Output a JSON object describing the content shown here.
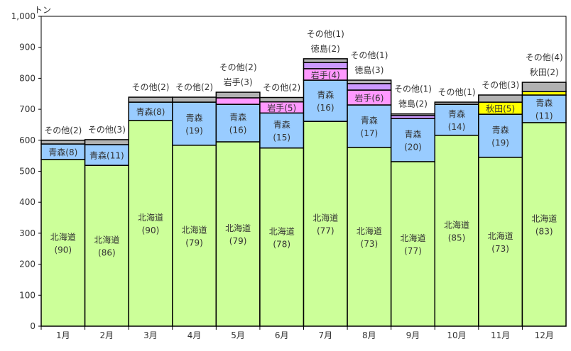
{
  "chart_data": {
    "type": "bar",
    "stacked": true,
    "unit_label": "トン",
    "ylim": [
      0,
      1000
    ],
    "yticks": [
      0,
      100,
      200,
      300,
      400,
      500,
      600,
      700,
      800,
      900,
      1000
    ],
    "ytick_labels": [
      "0",
      "100",
      "200",
      "300",
      "400",
      "500",
      "600",
      "700",
      "800",
      "900",
      "1,000"
    ],
    "grid": false,
    "legend": "none",
    "categories": [
      "1月",
      "2月",
      "3月",
      "4月",
      "5月",
      "6月",
      "7月",
      "8月",
      "9月",
      "10月",
      "11月",
      "12月"
    ],
    "series": [
      {
        "name": "北海道",
        "color": "#ccff99",
        "values": [
          538,
          519,
          664,
          584,
          595,
          575,
          661,
          577,
          531,
          616,
          545,
          657
        ]
      },
      {
        "name": "青森",
        "color": "#99ccff",
        "values": [
          50,
          67,
          59,
          139,
          121,
          113,
          133,
          137,
          139,
          100,
          139,
          89
        ]
      },
      {
        "name": "岩手",
        "color": "#ff99ff",
        "values": [
          0,
          0,
          0,
          0,
          21,
          36,
          37,
          48,
          0,
          0,
          0,
          0
        ]
      },
      {
        "name": "徳島",
        "color": "#cc99ff",
        "values": [
          0,
          0,
          0,
          0,
          0,
          0,
          20,
          21,
          10,
          0,
          0,
          0
        ]
      },
      {
        "name": "秋田",
        "color": "#ffff00",
        "values": [
          0,
          0,
          0,
          0,
          0,
          0,
          0,
          0,
          0,
          0,
          39,
          11
        ]
      },
      {
        "name": "その他",
        "color": "#b2b2b2",
        "values": [
          12,
          16,
          16,
          16,
          18,
          14,
          12,
          11,
          5,
          7,
          23,
          30
        ]
      }
    ],
    "labels": [
      {
        "inside": [
          [
            "北海道",
            "(90)"
          ],
          [
            "青森(8)"
          ]
        ],
        "above": [
          "その他(2)"
        ]
      },
      {
        "inside": [
          [
            "北海道",
            "(86)"
          ],
          [
            "青森(11)"
          ]
        ],
        "above": [
          "その他(3)"
        ]
      },
      {
        "inside": [
          [
            "北海道",
            "(90)"
          ],
          [
            "青森(8)"
          ]
        ],
        "above": [
          "その他(2)"
        ]
      },
      {
        "inside": [
          [
            "北海道",
            "(79)"
          ],
          [
            "青森",
            "(19)"
          ]
        ],
        "above": [
          "その他(2)"
        ]
      },
      {
        "inside": [
          [
            "北海道",
            "(79)"
          ],
          [
            "青森",
            "(16)"
          ]
        ],
        "above": [
          "岩手(3)",
          "その他(2)"
        ]
      },
      {
        "inside": [
          [
            "北海道",
            "(78)"
          ],
          [
            "青森",
            "(15)"
          ],
          [
            "岩手(5)"
          ]
        ],
        "above": [
          "その他(2)"
        ]
      },
      {
        "inside": [
          [
            "北海道",
            "(77)"
          ],
          [
            "青森",
            "(16)"
          ],
          [
            "岩手(4)"
          ]
        ],
        "above": [
          "徳島(2)",
          "その他(1)"
        ]
      },
      {
        "inside": [
          [
            "北海道",
            "(73)"
          ],
          [
            "青森",
            "(17)"
          ],
          [
            "岩手(6)"
          ]
        ],
        "above": [
          "徳島(3)",
          "その他(1)"
        ]
      },
      {
        "inside": [
          [
            "北海道",
            "(77)"
          ],
          [
            "青森",
            "(20)"
          ]
        ],
        "above": [
          "徳島(2)",
          "その他(1)"
        ]
      },
      {
        "inside": [
          [
            "北海道",
            "(85)"
          ],
          [
            "青森",
            "(14)"
          ]
        ],
        "above": [
          "その他(1)"
        ]
      },
      {
        "inside": [
          [
            "北海道",
            "(73)"
          ],
          [
            "青森",
            "(19)"
          ],
          [
            "秋田(5)"
          ]
        ],
        "above": [
          "その他(3)"
        ]
      },
      {
        "inside": [
          [
            "北海道",
            "(83)"
          ],
          [
            "青森",
            "(11)"
          ]
        ],
        "above": [
          "秋田(2)",
          "その他(4)"
        ]
      }
    ]
  }
}
